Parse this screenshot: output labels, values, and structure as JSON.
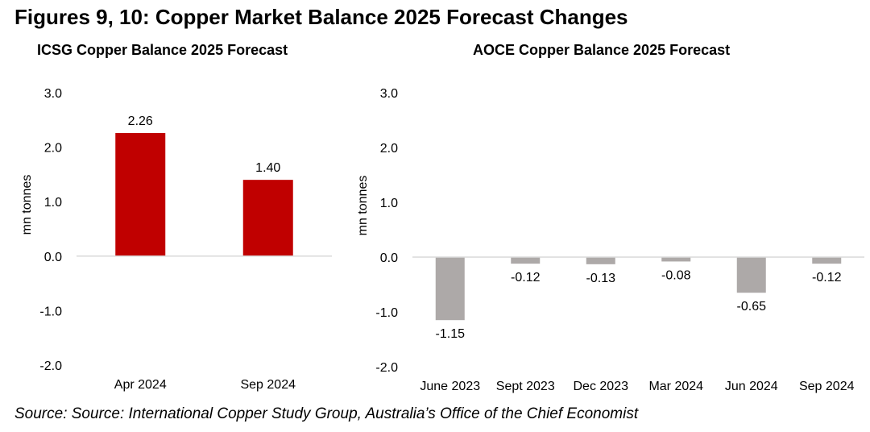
{
  "figure": {
    "title": "Figures 9, 10: Copper Market Balance 2025 Forecast Changes",
    "source": "Source: Source: International Copper Study Group, Australia’s Office of the Chief Economist"
  },
  "colors": {
    "icsg_bar": "#C00000",
    "aoce_bar": "#ADA9A8",
    "baseline": "#D9D9D9"
  },
  "chart_data": [
    {
      "type": "bar",
      "title": "ICSG Copper Balance 2025 Forecast",
      "xlabel": "",
      "ylabel": "mn tonnes",
      "ylim": [
        -2.0,
        3.0
      ],
      "yticks": [
        "3.0",
        "2.0",
        "1.0",
        "0.0",
        "-1.0",
        "-2.0"
      ],
      "ytick_values": [
        3,
        2,
        1,
        0,
        -1,
        -2
      ],
      "categories": [
        "Apr 2024",
        "Sep 2024"
      ],
      "values": [
        2.26,
        1.4
      ],
      "data_labels": [
        "2.26",
        "1.40"
      ],
      "grid": false,
      "legend": "none"
    },
    {
      "type": "bar",
      "title": "AOCE Copper Balance 2025 Forecast",
      "xlabel": "",
      "ylabel": "mn tonnes",
      "ylim": [
        -2.0,
        3.0
      ],
      "yticks": [
        "3.0",
        "2.0",
        "1.0",
        "0.0",
        "-1.0",
        "-2.0"
      ],
      "ytick_values": [
        3,
        2,
        1,
        0,
        -1,
        -2
      ],
      "categories": [
        "June 2023",
        "Sept 2023",
        "Dec 2023",
        "Mar 2024",
        "Jun 2024",
        "Sep 2024"
      ],
      "values": [
        -1.15,
        -0.12,
        -0.13,
        -0.08,
        -0.65,
        -0.12
      ],
      "data_labels": [
        "-1.15",
        "-0.12",
        "-0.13",
        "-0.08",
        "-0.65",
        "-0.12"
      ],
      "grid": false,
      "legend": "none"
    }
  ]
}
